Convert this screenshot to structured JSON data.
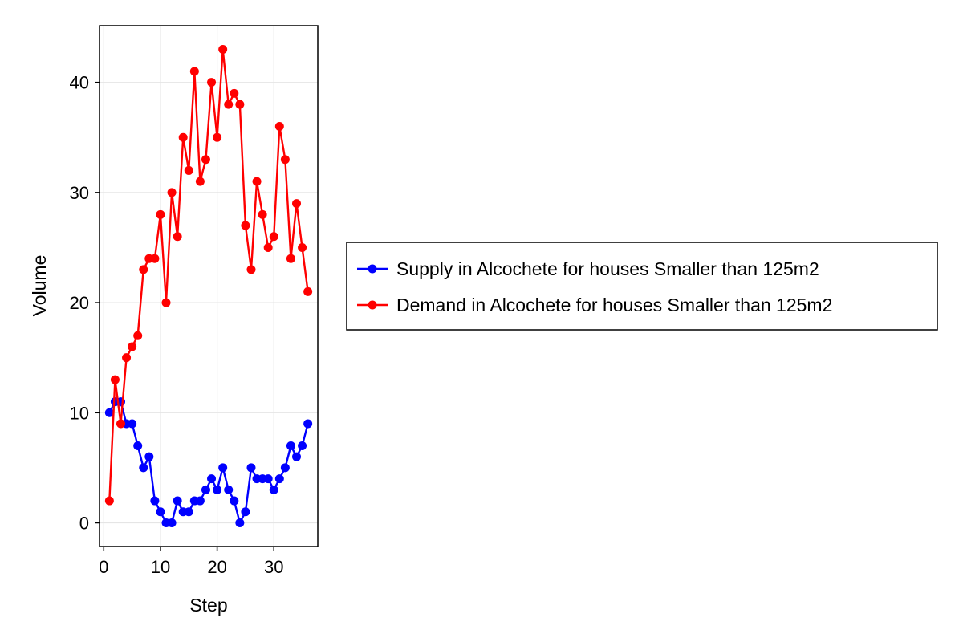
{
  "chart_data": {
    "type": "line",
    "xlabel": "Step",
    "ylabel": "Volume",
    "xlim": [
      -0.75,
      37.75
    ],
    "ylim": [
      -2.15,
      45.15
    ],
    "xticks": [
      0,
      10,
      20,
      30
    ],
    "yticks": [
      0,
      10,
      20,
      30,
      40
    ],
    "grid": true,
    "legend_placement": "right",
    "x": [
      1,
      2,
      3,
      4,
      5,
      6,
      7,
      8,
      9,
      10,
      11,
      12,
      13,
      14,
      15,
      16,
      17,
      18,
      19,
      20,
      21,
      22,
      23,
      24,
      25,
      26,
      27,
      28,
      29,
      30,
      31,
      32,
      33,
      34,
      35,
      36
    ],
    "series": [
      {
        "name": "Supply in Alcochete for houses Smaller than 125m2",
        "color": "#0000ff",
        "values": [
          10,
          11,
          11,
          9,
          9,
          7,
          5,
          6,
          2,
          1,
          0,
          0,
          2,
          1,
          1,
          2,
          2,
          3,
          4,
          3,
          5,
          3,
          2,
          0,
          1,
          5,
          4,
          4,
          4,
          3,
          4,
          5,
          7,
          6,
          7,
          9
        ]
      },
      {
        "name": "Demand in Alcochete for houses Smaller than 125m2",
        "color": "#ff0000",
        "values": [
          2,
          13,
          9,
          15,
          16,
          17,
          23,
          24,
          24,
          28,
          20,
          30,
          26,
          35,
          32,
          41,
          31,
          33,
          40,
          35,
          43,
          38,
          39,
          38,
          27,
          23,
          31,
          28,
          25,
          26,
          36,
          33,
          24,
          29,
          25,
          21
        ]
      }
    ]
  }
}
